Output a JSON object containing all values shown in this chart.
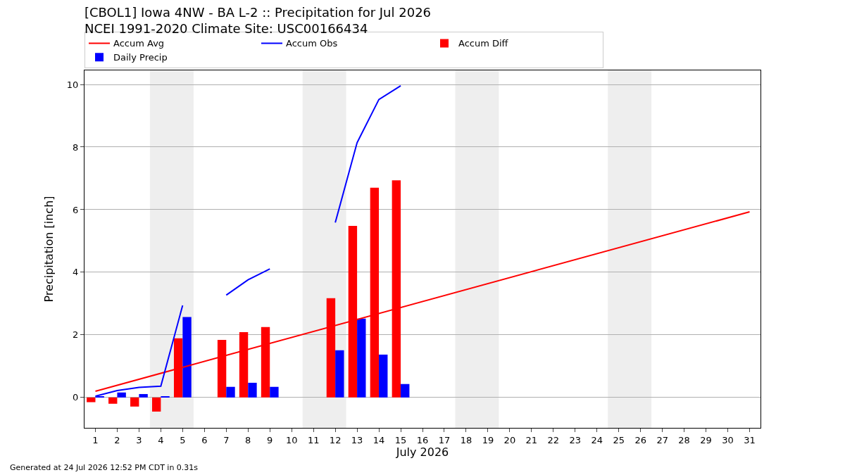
{
  "chart_data": {
    "type": "bar",
    "title": "[CBOL1] Iowa 4NW - BA L-2 :: Precipitation for Jul 2026",
    "subtitle": "NCEI 1991-2020 Climate Site: USC00166434",
    "xlabel": "July 2026",
    "ylabel": "Precipitation [inch]",
    "x": [
      1,
      2,
      3,
      4,
      5,
      6,
      7,
      8,
      9,
      10,
      11,
      12,
      13,
      14,
      15
    ],
    "series": [
      {
        "name": "Accum Avg",
        "type": "line",
        "color": "#ff0000",
        "x": [
          1,
          31
        ],
        "values": [
          0.2,
          5.93
        ]
      },
      {
        "name": "Accum Obs",
        "type": "line",
        "color": "#0000ff",
        "values": [
          0.04,
          0.22,
          0.32,
          0.36,
          2.94,
          null,
          3.27,
          3.76,
          4.11,
          null,
          null,
          5.59,
          8.14,
          9.52,
          9.96
        ]
      },
      {
        "name": "Accum Diff",
        "color": "#ff0000",
        "values": [
          -0.15,
          -0.2,
          -0.29,
          -0.45,
          1.89,
          null,
          1.84,
          2.09,
          2.25,
          null,
          null,
          3.17,
          5.48,
          6.7,
          6.94
        ]
      },
      {
        "name": "Daily Precip",
        "color": "#0000ff",
        "values": [
          0.04,
          0.16,
          0.11,
          0.04,
          2.57,
          null,
          0.34,
          0.47,
          0.34,
          null,
          null,
          1.51,
          2.52,
          1.37,
          0.43
        ]
      }
    ],
    "xlim": [
      0.5,
      31.5
    ],
    "xticks": [
      1,
      2,
      3,
      4,
      5,
      6,
      7,
      8,
      9,
      10,
      11,
      12,
      13,
      14,
      15,
      16,
      17,
      18,
      19,
      20,
      21,
      22,
      23,
      24,
      25,
      26,
      27,
      28,
      29,
      30,
      31
    ],
    "ylim": [
      -0.97,
      10.45
    ],
    "yticks": [
      0,
      2,
      4,
      6,
      8,
      10
    ],
    "bands": [
      {
        "axis": "x",
        "from": 3.5,
        "to": 5.5,
        "color": "#eeeeee"
      },
      {
        "axis": "x",
        "from": 10.5,
        "to": 12.5,
        "color": "#eeeeee"
      },
      {
        "axis": "x",
        "from": 17.5,
        "to": 19.5,
        "color": "#eeeeee"
      },
      {
        "axis": "x",
        "from": 24.5,
        "to": 26.5,
        "color": "#eeeeee"
      }
    ],
    "grid": "y",
    "legend": "top",
    "annotations": [
      "Generated at 24 Jul 2026 12:52 PM CDT in 0.31s"
    ]
  }
}
